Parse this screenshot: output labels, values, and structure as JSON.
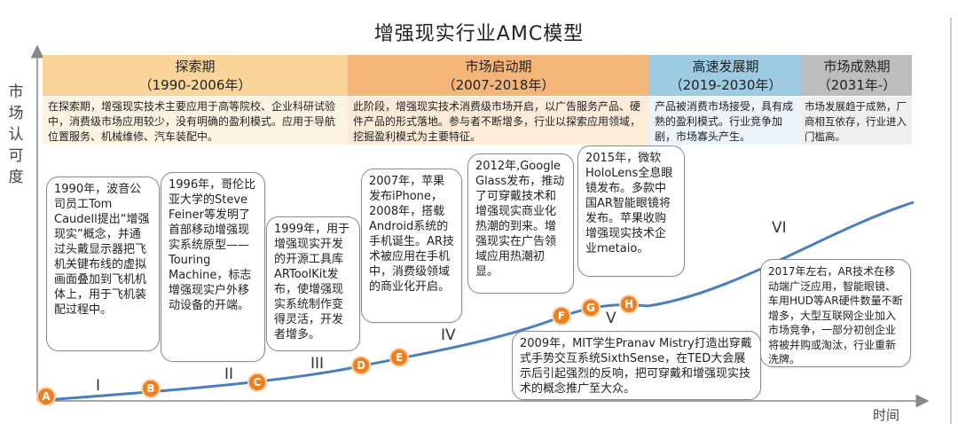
{
  "title": "增强现实行业AMC模型",
  "y_axis_label": "市场认可度",
  "x_axis_label": "时间",
  "phases": [
    {
      "name": "探索期",
      "range": "（1990-2006年）",
      "color": "#f9d59a",
      "description": "在探索期，增强现实技术主要应用于高等院校、企业科研试验中，消费级市场应用较少，没有明确的盈利模式。应用于导航位置服务、机械维修、汽车装配中。"
    },
    {
      "name": "市场启动期",
      "range": "（2007-2018年）",
      "color": "#f4b678",
      "description": "此阶段，增强现实技术消费级市场开启，以广告服务产品、硬件产品的形式落地。参与者不断增多，行业以探索应用领域，挖掘盈利模式为主要特征。"
    },
    {
      "name": "高速发展期",
      "range": "（2019-2030年）",
      "color": "#9ccbe2",
      "description": "产品被消费市场接受，具有成熟的盈利模式。行业竞争加剧，市场寡头产生。"
    },
    {
      "name": "市场成熟期",
      "range": "（2031年-）",
      "color": "#bdbdbd",
      "description": "市场发展趋于成熟，厂商相互依存，行业进入门槛高。"
    }
  ],
  "events": [
    {
      "marker": "A",
      "text": "1990年，波音公司员工Tom Caudell提出“增强现实”概念，并通过头戴显示器把飞机关键布线的虚拟画面叠加到飞机机体上，用于飞机装配过程中。"
    },
    {
      "marker": "B",
      "text": "1996年，哥伦比亚大学的Steve Feiner等发明了首部移动增强现实系统原型——Touring Machine，标志增强现实户外移动设备的开端。"
    },
    {
      "marker": "C",
      "text": "1999年，用于增强现实开发的开源工具库ARToolKit发布，使增强现实系统制作变得灵活，开发者增多。"
    },
    {
      "marker": "D",
      "text": "2007年，苹果发布iPhone，2008年，搭载Android系统的手机诞生。AR技术被应用在手机中，消费级领域的商业化开启。"
    },
    {
      "marker": "E",
      "text": "2009年，MIT学生Pranav Mistry打造出穿戴式手势交互系统SixthSense，在TED大会展示后引起强烈的反响，把可穿戴和增强现实技术的概念推广至大众。"
    },
    {
      "marker": "F",
      "text": "2012年,Google Glass发布，推动了可穿戴技术和增强现实商业化热潮的到来。增强现实在广告领域应用热潮初显。"
    },
    {
      "marker": "G",
      "text": "2015年，微软HoloLens全息眼镜发布。多款中国AR智能眼镜将发布。苹果收购增强现实技术企业metaio。"
    },
    {
      "marker": "H",
      "text": ""
    },
    {
      "marker": "",
      "text": "2017年左右，AR技术在移动端广泛应用，智能眼镜、车用HUD等AR硬件数量不断增多，大型互联网企业加入市场竞争，一部分初创企业将被并购或淘汰，行业重新洗牌。"
    }
  ],
  "stages": [
    "I",
    "II",
    "III",
    "IV",
    "V",
    "VI"
  ],
  "chart_data": {
    "type": "line",
    "title": "增强现实行业AMC模型",
    "xlabel": "时间",
    "ylabel": "市场认可度",
    "curve_color": "#4a7fbf"
  }
}
